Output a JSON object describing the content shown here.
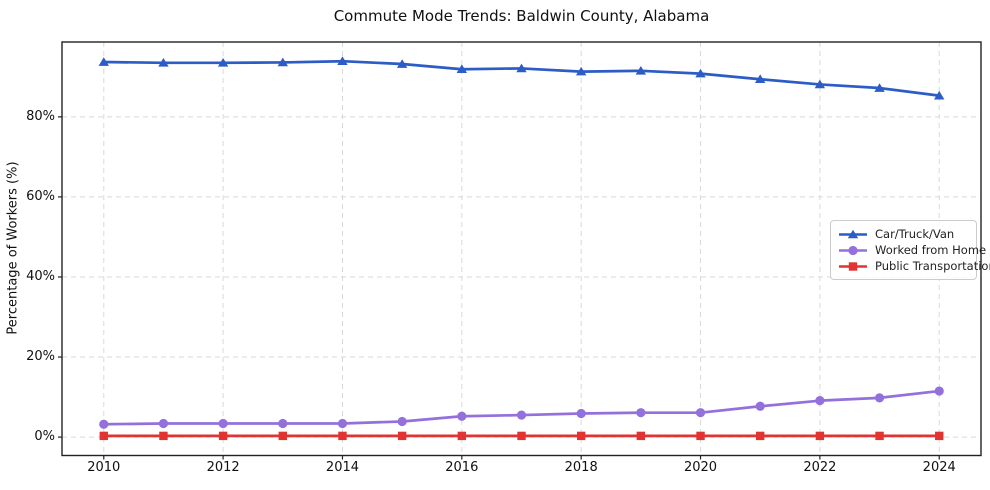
{
  "title": "Commute Mode Trends: Baldwin County, Alabama",
  "chart_data": {
    "type": "line",
    "title": "Commute Mode Trends: Baldwin County, Alabama",
    "xlabel": "",
    "ylabel": "Percentage of Workers (%)",
    "x": [
      2010,
      2011,
      2012,
      2013,
      2014,
      2015,
      2016,
      2017,
      2018,
      2019,
      2020,
      2021,
      2022,
      2023,
      2024
    ],
    "series": [
      {
        "name": "Car/Truck/Van",
        "color": "#2c5cc5",
        "marker": "triangle",
        "values": [
          93.7,
          93.5,
          93.5,
          93.6,
          93.9,
          93.2,
          91.9,
          92.1,
          91.3,
          91.5,
          90.8,
          89.4,
          88.1,
          87.2,
          85.3
        ]
      },
      {
        "name": "Worked from Home",
        "color": "#9370db",
        "marker": "circle",
        "values": [
          3.2,
          3.4,
          3.4,
          3.4,
          3.4,
          3.9,
          5.2,
          5.5,
          5.9,
          6.1,
          6.1,
          7.7,
          9.1,
          9.8,
          11.5
        ]
      },
      {
        "name": "Public Transportation",
        "color": "#e23333",
        "marker": "square",
        "values": [
          0.3,
          0.3,
          0.3,
          0.3,
          0.3,
          0.3,
          0.3,
          0.3,
          0.3,
          0.3,
          0.3,
          0.3,
          0.3,
          0.3,
          0.3
        ]
      }
    ],
    "xlim": [
      2009.3,
      2024.7
    ],
    "ylim": [
      -4.6,
      98.7
    ],
    "xticks": {
      "values": [
        2010,
        2012,
        2014,
        2016,
        2018,
        2020,
        2022,
        2024
      ],
      "labels": [
        "2010",
        "2012",
        "2014",
        "2016",
        "2018",
        "2020",
        "2022",
        "2024"
      ]
    },
    "yticks": {
      "values": [
        0,
        20,
        40,
        60,
        80
      ],
      "labels": [
        "0%",
        "20%",
        "40%",
        "60%",
        "80%"
      ]
    },
    "grid": "dashed",
    "legend_position": "center-right",
    "style": {
      "grid_color": "#d9d9d9",
      "frame_color": "#222222",
      "background": "#ffffff"
    }
  }
}
